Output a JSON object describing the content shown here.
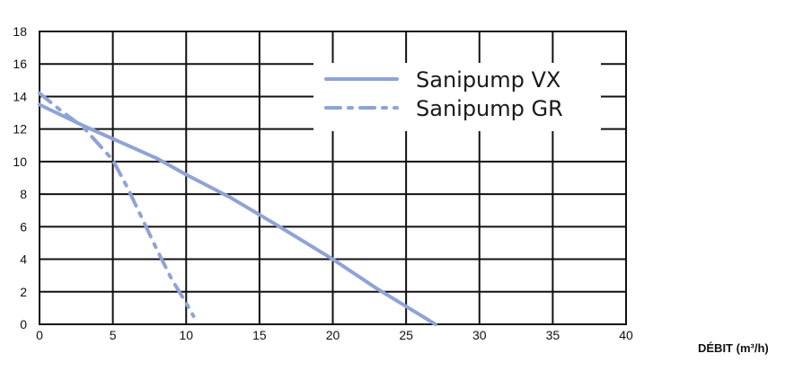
{
  "chart_data": {
    "type": "line",
    "title": "",
    "xlabel": "DÉBIT (m³/h)",
    "ylabel": "",
    "xlim": [
      0,
      40
    ],
    "ylim": [
      0,
      18
    ],
    "xticks": [
      0,
      5,
      10,
      15,
      20,
      25,
      30,
      35,
      40
    ],
    "yticks": [
      0,
      2,
      4,
      6,
      8,
      10,
      12,
      14,
      16,
      18
    ],
    "grid": true,
    "legend_position": "top-right",
    "series": [
      {
        "name": "Sanipump VX",
        "style": "solid",
        "color": "#8fa3d6",
        "x": [
          0,
          3,
          5,
          8,
          10,
          13,
          16,
          20,
          23,
          25,
          27
        ],
        "y": [
          13.5,
          12.2,
          11.4,
          10.2,
          9.2,
          7.8,
          6.2,
          4.0,
          2.2,
          1.1,
          0
        ]
      },
      {
        "name": "Sanipump GR",
        "style": "dashdot",
        "color": "#8fa3d6",
        "x": [
          0,
          1.5,
          3,
          5,
          6,
          7,
          8,
          9,
          10,
          10.5
        ],
        "y": [
          14.2,
          13.1,
          12.1,
          10.1,
          8.4,
          6.5,
          4.6,
          2.8,
          1.3,
          0.5
        ]
      }
    ]
  }
}
